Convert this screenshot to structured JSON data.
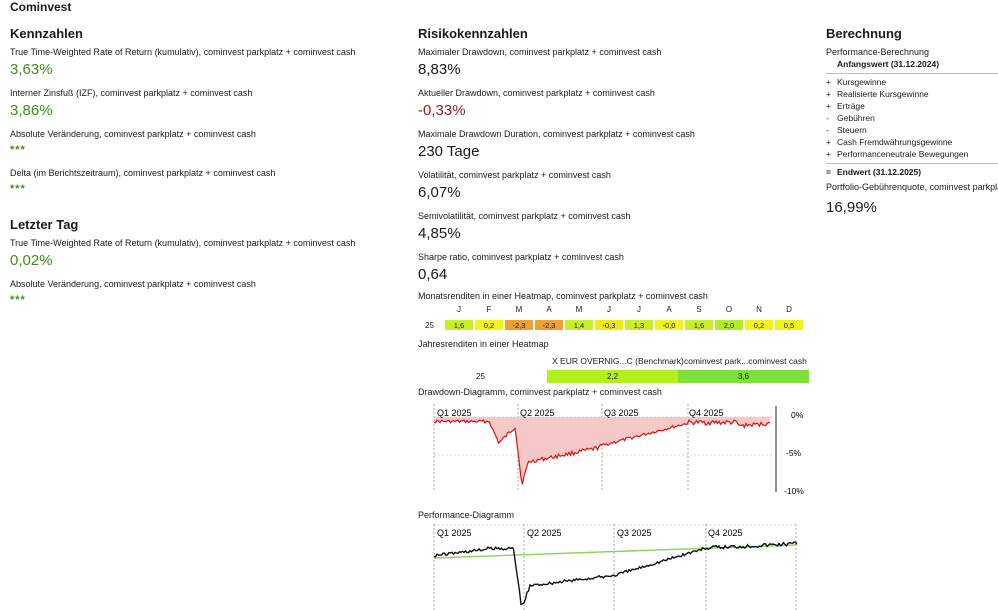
{
  "app_title": "Cominvest",
  "kennzahlen": {
    "title": "Kennzahlen",
    "metrics": [
      {
        "label": "True Time-Weighted Rate of Return (kumulativ), cominvest parkplatz + cominvest cash",
        "value": "3,63%"
      },
      {
        "label": "Interner Zinsfuß (IZF), cominvest parkplatz + cominvest cash",
        "value": "3,86%"
      },
      {
        "label": "Absolute Veränderung, cominvest parkplatz + cominvest cash",
        "value": "***"
      },
      {
        "label": "Delta (im Berichtszeitraum), cominvest parkplatz + cominvest cash",
        "value": "***"
      }
    ]
  },
  "letzter_tag": {
    "title": "Letzter Tag",
    "metrics": [
      {
        "label": "True Time-Weighted Rate of Return (kumulativ), cominvest parkplatz + cominvest cash",
        "value": "0,02%"
      },
      {
        "label": "Absolute Veränderung, cominvest parkplatz + cominvest cash",
        "value": "***"
      }
    ]
  },
  "risiko": {
    "title": "Risikokennzahlen",
    "metrics": [
      {
        "label": "Maximaler Drawdown, cominvest parkplatz + cominvest cash",
        "value": "8,83%"
      },
      {
        "label": "Aktueller Drawdown, cominvest parkplatz + cominvest cash",
        "value": "-0,33%"
      },
      {
        "label": "Maximale Drawdown Duration, cominvest parkplatz + cominvest cash",
        "value": "230 Tage"
      },
      {
        "label": "Volatilität, cominvest parkplatz + cominvest cash",
        "value": "6,07%"
      },
      {
        "label": "Semivolatilität, cominvest parkplatz + cominvest cash",
        "value": "4,85%"
      },
      {
        "label": "Sharpe ratio, cominvest parkplatz + cominvest cash",
        "value": "0,64"
      }
    ],
    "monthly_heatmap": {
      "label": "Monatsrenditen in einer Heatmap, cominvest parkplatz + cominvest cash",
      "year": "25",
      "months": [
        "J",
        "F",
        "M",
        "A",
        "M",
        "J",
        "J",
        "A",
        "S",
        "O",
        "N",
        "D"
      ],
      "values": [
        "1,6",
        "0,2",
        "-2,3",
        "-2,3",
        "1,4",
        "-0,3",
        "1,3",
        "-0,0",
        "1,6",
        "2,0",
        "0,2",
        "0,5"
      ],
      "colors": [
        "#c6ef2a",
        "#f2f21e",
        "#f0a030",
        "#f0a030",
        "#c6ef2a",
        "#f0e81a",
        "#c6ef2a",
        "#f2f21e",
        "#c6ef2a",
        "#b4ec2a",
        "#f2f21e",
        "#eef21e"
      ]
    },
    "yearly_heatmap": {
      "label": "Jahresrenditen in einer Heatmap",
      "year": "25",
      "columns": [
        "X EUR OVERNIG...C (Benchmark)",
        "cominvest park...cominvest cash"
      ],
      "values": [
        "2,2",
        "3,6"
      ],
      "colors": [
        "#b2ef1e",
        "#7ee03a"
      ]
    },
    "drawdown_chart": {
      "label": "Drawdown-Diagramm, cominvest parkplatz + cominvest cash",
      "quarters": [
        "Q1 2025",
        "Q2 2025",
        "Q3 2025",
        "Q4 2025"
      ],
      "y_ticks": [
        "0%",
        "-5%",
        "-10%"
      ]
    },
    "performance_chart": {
      "label": "Performance-Diagramm",
      "quarters": [
        "Q1 2025",
        "Q2 2025",
        "Q3 2025",
        "Q4 2025"
      ]
    }
  },
  "berechnung": {
    "title": "Berechnung",
    "subtitle": "Performance-Berechnung",
    "start": "Anfangswert (31.12.2024)",
    "rows": [
      {
        "sym": "+",
        "label": "Kursgewinne"
      },
      {
        "sym": "+",
        "label": "Realisierte Kursgewinne"
      },
      {
        "sym": "+",
        "label": "Erträge"
      },
      {
        "sym": "-",
        "label": "Gebühren"
      },
      {
        "sym": "-",
        "label": "Steuern"
      },
      {
        "sym": "+",
        "label": "Cash Fremdwährungsgewinne"
      },
      {
        "sym": "+",
        "label": "Performanceneutrale Bewegungen"
      }
    ],
    "end_sym": "=",
    "end": "Endwert (31.12.2025)",
    "fee_label": "Portfolio-Gebührenquote, cominvest parkplatz",
    "fee_value": "16,99%"
  },
  "colors": {
    "positive": "#3e8e1c",
    "negative": "#9a1c1c",
    "drawdown_line": "#e01010",
    "drawdown_fill": "#f6c8c8",
    "performance_line": "#111111",
    "benchmark_line": "#8bd35a"
  }
}
